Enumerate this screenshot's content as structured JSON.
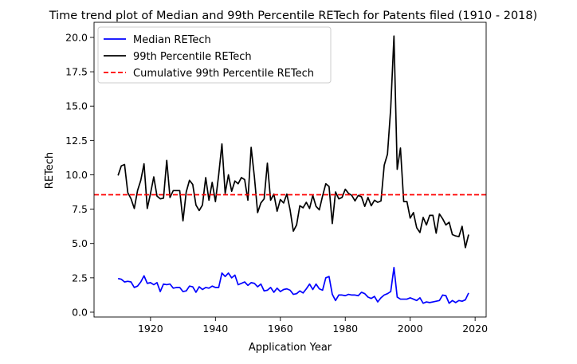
{
  "chart_data": {
    "type": "line",
    "title": "Time trend plot of Median and 99th Percentile RETech for Patents filed (1910 - 2018)",
    "xlabel": "Application Year",
    "ylabel": "RETech",
    "xlim": [
      1902.6,
      2023.4
    ],
    "ylim": [
      -0.35,
      21.1
    ],
    "xticks": [
      1920,
      1940,
      1960,
      1980,
      2000,
      2020
    ],
    "xtick_labels": [
      "1920",
      "1940",
      "1960",
      "1980",
      "2000",
      "2020"
    ],
    "yticks": [
      0,
      2.5,
      5,
      7.5,
      10,
      12.5,
      15,
      17.5,
      20
    ],
    "ytick_labels": [
      "0.0",
      "2.5",
      "5.0",
      "7.5",
      "10.0",
      "12.5",
      "15.0",
      "17.5",
      "20.0"
    ],
    "grid": false,
    "legend_position": "top-left",
    "x": [
      1910,
      1911,
      1912,
      1913,
      1914,
      1915,
      1916,
      1917,
      1918,
      1919,
      1920,
      1921,
      1922,
      1923,
      1924,
      1925,
      1926,
      1927,
      1928,
      1929,
      1930,
      1931,
      1932,
      1933,
      1934,
      1935,
      1936,
      1937,
      1938,
      1939,
      1940,
      1941,
      1942,
      1943,
      1944,
      1945,
      1946,
      1947,
      1948,
      1949,
      1950,
      1951,
      1952,
      1953,
      1954,
      1955,
      1956,
      1957,
      1958,
      1959,
      1960,
      1961,
      1962,
      1963,
      1964,
      1965,
      1966,
      1967,
      1968,
      1969,
      1970,
      1971,
      1972,
      1973,
      1974,
      1975,
      1976,
      1977,
      1978,
      1979,
      1980,
      1981,
      1982,
      1983,
      1984,
      1985,
      1986,
      1987,
      1988,
      1989,
      1990,
      1991,
      1992,
      1993,
      1994,
      1995,
      1996,
      1997,
      1998,
      1999,
      2000,
      2001,
      2002,
      2003,
      2004,
      2005,
      2006,
      2007,
      2008,
      2009,
      2010,
      2011,
      2012,
      2013,
      2014,
      2015,
      2016,
      2017,
      2018
    ],
    "series": [
      {
        "name": "Median RETech",
        "color": "#0000ff",
        "style": "solid",
        "values": [
          2.45,
          2.4,
          2.2,
          2.25,
          2.2,
          1.8,
          1.9,
          2.2,
          2.65,
          2.1,
          2.15,
          2.0,
          2.15,
          1.5,
          2.05,
          2.0,
          2.05,
          1.75,
          1.8,
          1.8,
          1.5,
          1.55,
          1.9,
          1.85,
          1.45,
          1.85,
          1.65,
          1.8,
          1.75,
          1.9,
          1.8,
          1.8,
          2.85,
          2.6,
          2.85,
          2.5,
          2.7,
          2.0,
          2.1,
          2.2,
          1.95,
          2.15,
          2.1,
          1.85,
          2.05,
          1.55,
          1.6,
          1.8,
          1.45,
          1.75,
          1.5,
          1.65,
          1.7,
          1.6,
          1.3,
          1.35,
          1.55,
          1.4,
          1.7,
          2.05,
          1.65,
          2.05,
          1.7,
          1.6,
          2.5,
          2.6,
          1.3,
          0.85,
          1.25,
          1.25,
          1.2,
          1.3,
          1.25,
          1.25,
          1.2,
          1.45,
          1.35,
          1.1,
          1.0,
          1.15,
          0.75,
          1.05,
          1.25,
          1.35,
          1.5,
          3.25,
          1.1,
          0.95,
          0.95,
          0.95,
          1.05,
          0.95,
          0.85,
          1.05,
          0.65,
          0.75,
          0.7,
          0.75,
          0.8,
          0.85,
          1.25,
          1.2,
          0.65,
          0.85,
          0.7,
          0.85,
          0.8,
          0.9,
          1.4
        ]
      },
      {
        "name": "99th Percentile RETech",
        "color": "#000000",
        "style": "solid",
        "values": [
          9.95,
          10.65,
          10.75,
          8.7,
          8.25,
          7.55,
          8.85,
          9.6,
          10.8,
          7.55,
          8.65,
          9.85,
          8.45,
          8.25,
          8.3,
          11.05,
          8.35,
          8.85,
          8.85,
          8.85,
          6.65,
          8.75,
          9.6,
          9.3,
          7.8,
          7.4,
          7.8,
          9.8,
          8.15,
          9.45,
          8.05,
          10.0,
          12.25,
          8.65,
          10.0,
          8.8,
          9.55,
          9.35,
          9.8,
          9.65,
          8.15,
          12.0,
          9.85,
          7.25,
          7.95,
          8.25,
          10.85,
          8.15,
          8.6,
          7.35,
          8.2,
          7.95,
          8.6,
          7.45,
          5.9,
          6.35,
          7.75,
          7.6,
          8.0,
          7.55,
          8.5,
          7.7,
          7.45,
          8.45,
          9.35,
          9.15,
          6.45,
          8.75,
          8.25,
          8.35,
          8.95,
          8.65,
          8.5,
          8.1,
          8.5,
          8.4,
          7.7,
          8.35,
          7.75,
          8.15,
          8.0,
          8.1,
          10.7,
          11.5,
          14.85,
          20.1,
          10.4,
          11.95,
          8.05,
          8.05,
          6.85,
          7.25,
          6.15,
          5.8,
          6.9,
          6.35,
          7.05,
          7.05,
          5.75,
          7.15,
          6.8,
          6.35,
          6.55,
          5.65,
          5.55,
          5.5,
          6.25,
          4.7,
          5.65
        ]
      },
      {
        "name": "Cumulative 99th Percentile RETech",
        "color": "#ff0000",
        "style": "dashed",
        "value": 8.55
      }
    ]
  }
}
